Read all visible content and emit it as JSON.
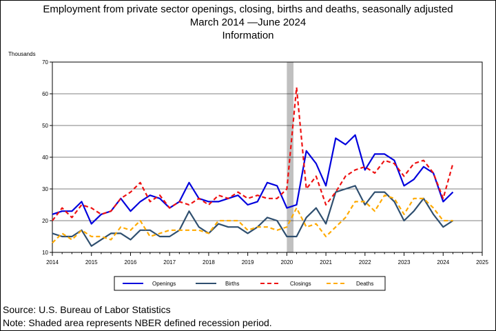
{
  "chart_data": {
    "type": "line",
    "title": "Employment from private sector openings, closing, births and deaths, seasonally adjusted",
    "subtitle": "March 2014 —June 2024",
    "subtitle2": "Information",
    "ylabel": "Thousands",
    "xlabel": "",
    "xlim": [
      2014,
      2025
    ],
    "ylim": [
      10,
      70
    ],
    "x_ticks": [
      "2014",
      "2015",
      "2016",
      "2017",
      "2018",
      "2019",
      "2020",
      "2021",
      "2022",
      "2023",
      "2024",
      "2025"
    ],
    "y_ticks": [
      "10",
      "20",
      "30",
      "40",
      "50",
      "60",
      "70"
    ],
    "grid": "horizontal",
    "recession": [
      2020.0,
      2020.17
    ],
    "legend_position": "bottom",
    "x": [
      2014.0,
      2014.25,
      2014.5,
      2014.75,
      2015.0,
      2015.25,
      2015.5,
      2015.75,
      2016.0,
      2016.25,
      2016.5,
      2016.75,
      2017.0,
      2017.25,
      2017.5,
      2017.75,
      2018.0,
      2018.25,
      2018.5,
      2018.75,
      2019.0,
      2019.25,
      2019.5,
      2019.75,
      2020.0,
      2020.25,
      2020.5,
      2020.75,
      2021.0,
      2021.25,
      2021.5,
      2021.75,
      2022.0,
      2022.25,
      2022.5,
      2022.75,
      2023.0,
      2023.25,
      2023.5,
      2023.75,
      2024.0,
      2024.25
    ],
    "series": [
      {
        "name": "Openings",
        "color": "#0000dd",
        "dash": "none",
        "values": [
          22,
          23,
          23,
          26,
          19,
          22,
          23,
          27,
          23,
          26,
          28,
          27,
          24,
          26,
          32,
          27,
          26,
          26,
          27,
          28,
          25,
          26,
          32,
          31,
          24,
          25,
          42,
          38,
          31,
          46,
          44,
          47,
          36,
          41,
          41,
          39,
          31,
          33,
          37,
          35,
          26,
          29
        ]
      },
      {
        "name": "Births",
        "color": "#2f4f6f",
        "dash": "none",
        "values": [
          16,
          15,
          15,
          17,
          12,
          14,
          16,
          16,
          14,
          17,
          17,
          15,
          15,
          17,
          23,
          18,
          16,
          19,
          18,
          18,
          16,
          18,
          21,
          20,
          15,
          15,
          21,
          24,
          19,
          29,
          30,
          31,
          25,
          29,
          29,
          26,
          20,
          23,
          27,
          22,
          18,
          20
        ]
      },
      {
        "name": "Closings",
        "color": "#ee1111",
        "dash": "6,4",
        "values": [
          20,
          24,
          21,
          25,
          24,
          22,
          23,
          27,
          29,
          32,
          26,
          28,
          24,
          26,
          25,
          27,
          25,
          28,
          27,
          29,
          27,
          28,
          27,
          27,
          30,
          62,
          30,
          34,
          25,
          29,
          34,
          36,
          37,
          35,
          39,
          38,
          34,
          38,
          39,
          35,
          27,
          38
        ]
      },
      {
        "name": "Deaths",
        "color": "#ffaa00",
        "dash": "6,4",
        "values": [
          13,
          16,
          14,
          17,
          15,
          15,
          14,
          18,
          17,
          20,
          15,
          16,
          17,
          17,
          17,
          17,
          16,
          20,
          20,
          20,
          17,
          18,
          18,
          17,
          18,
          24,
          18,
          19,
          15,
          18,
          21,
          26,
          26,
          23,
          28,
          27,
          22,
          27,
          27,
          24,
          20,
          20
        ]
      }
    ]
  },
  "footer": {
    "source": "Source: U.S. Bureau of Labor Statistics",
    "note": "Note: Shaded area represents NBER defined recession period."
  }
}
